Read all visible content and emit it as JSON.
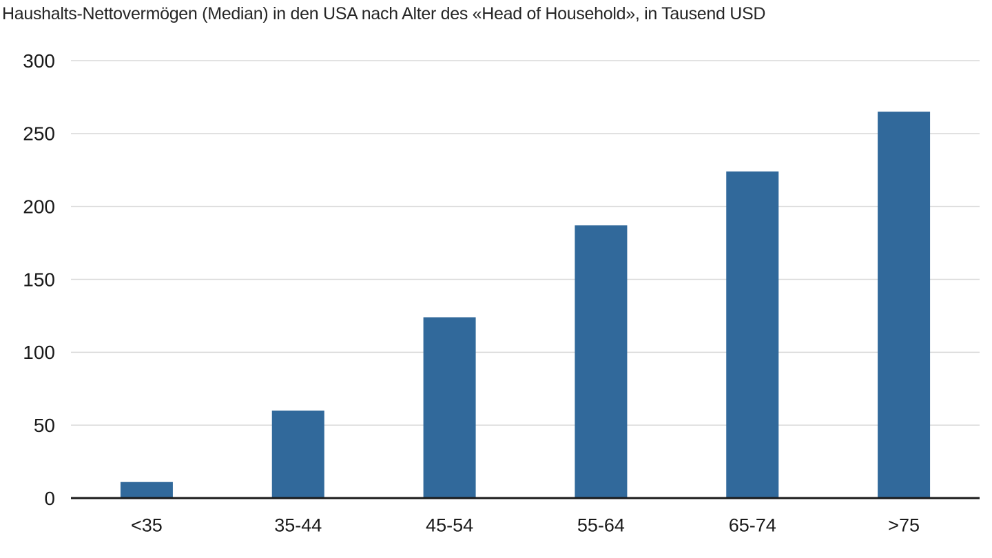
{
  "header": {
    "title": "Haushalts-Nettovermögen (Median) in den USA nach Alter des «Head of Household», in Tausend USD"
  },
  "chart_data": {
    "type": "bar",
    "title": "Haushalts-Nettovermögen (Median) in den USA nach Alter des «Head of Household», in Tausend USD",
    "categories": [
      "<35",
      "35-44",
      "45-54",
      "55-64",
      "65-74",
      ">75"
    ],
    "values": [
      11,
      60,
      124,
      187,
      224,
      265
    ],
    "xlabel": "",
    "ylabel": "",
    "ylim": [
      0,
      300
    ],
    "yticks": [
      0,
      50,
      100,
      150,
      200,
      250,
      300
    ],
    "grid": true,
    "legend": false,
    "colors": {
      "bar": "#31699b",
      "gridline": "#d9d9d9",
      "axis_line": "#1a1a1a",
      "tick_text": "#1a1a1a",
      "title_text": "#262626"
    }
  }
}
